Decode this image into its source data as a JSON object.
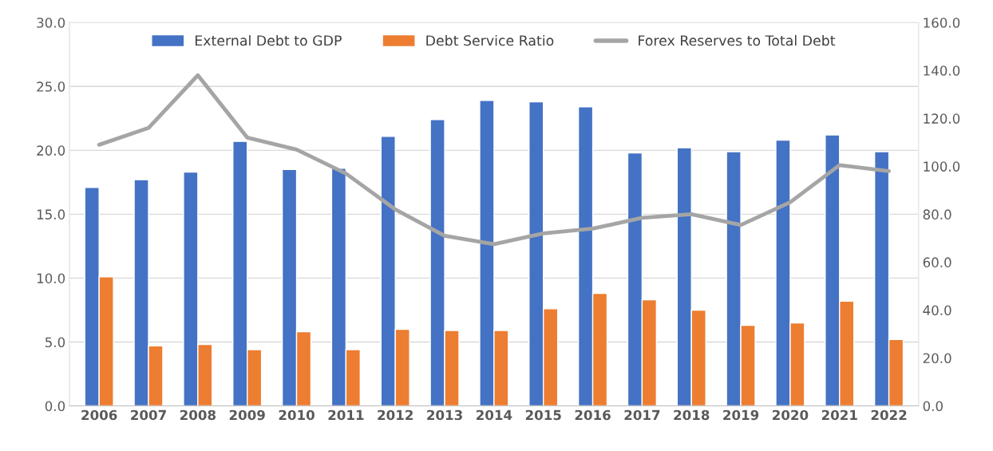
{
  "chart_data": {
    "type": "bar",
    "categories": [
      "2006",
      "2007",
      "2008",
      "2009",
      "2010",
      "2011",
      "2012",
      "2013",
      "2014",
      "2015",
      "2016",
      "2017",
      "2018",
      "2019",
      "2020",
      "2021",
      "2022"
    ],
    "series": [
      {
        "name": "External Debt to GDP",
        "color": "#4472c4",
        "values": [
          17.1,
          17.7,
          18.3,
          20.7,
          18.5,
          18.6,
          21.1,
          22.4,
          23.9,
          23.8,
          23.4,
          19.8,
          20.2,
          19.9,
          20.8,
          21.2,
          19.9
        ]
      },
      {
        "name": "Debt Service Ratio",
        "color": "#ed7d31",
        "values": [
          10.1,
          4.7,
          4.8,
          4.4,
          5.8,
          4.4,
          6.0,
          5.9,
          5.9,
          7.6,
          8.8,
          8.3,
          7.5,
          6.3,
          6.5,
          8.2,
          5.2
        ]
      },
      {
        "name": "Forex Reserves to Total Debt",
        "color": "#a5a5a5",
        "type": "line",
        "axis": "y2",
        "values": [
          109,
          116,
          138,
          112,
          107,
          97,
          82,
          71,
          67.5,
          72,
          74,
          78.5,
          80,
          75.5,
          85,
          100.5,
          98
        ]
      }
    ],
    "ylim": [
      0,
      30
    ],
    "yticks": [
      {
        "value": 0,
        "label": "0.0"
      },
      {
        "value": 5,
        "label": "5.0"
      },
      {
        "value": 10,
        "label": "10.0"
      },
      {
        "value": 15,
        "label": "15.0"
      },
      {
        "value": 20,
        "label": "20.0"
      },
      {
        "value": 25,
        "label": "25.0"
      },
      {
        "value": 30,
        "label": "30.0"
      }
    ],
    "y2lim": [
      0,
      160
    ],
    "y2ticks": [
      {
        "value": 0,
        "label": "0.0"
      },
      {
        "value": 20,
        "label": "20.0"
      },
      {
        "value": 40,
        "label": "40.0"
      },
      {
        "value": 60,
        "label": "60.0"
      },
      {
        "value": 80,
        "label": "80.0"
      },
      {
        "value": 100,
        "label": "100.0"
      },
      {
        "value": 120,
        "label": "120.0"
      },
      {
        "value": 140,
        "label": "140.0"
      },
      {
        "value": 160,
        "label": "160.0"
      }
    ],
    "grid": "y",
    "legend": "top"
  }
}
